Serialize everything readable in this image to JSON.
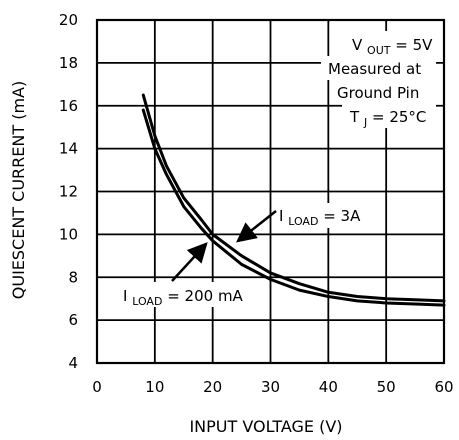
{
  "chart_data": {
    "type": "line",
    "xlabel": "INPUT VOLTAGE (V)",
    "ylabel": "QUIESCENT CURRENT (mA)",
    "xlim": [
      0,
      60
    ],
    "ylim": [
      4,
      20
    ],
    "x_ticks": [
      "0",
      "10",
      "20",
      "30",
      "40",
      "50",
      "60"
    ],
    "y_ticks": [
      "4",
      "6",
      "8",
      "10",
      "12",
      "14",
      "16",
      "18",
      "20"
    ],
    "grid": true,
    "series": [
      {
        "name": "I_LOAD = 3A",
        "label_main": "I",
        "label_sub": "LOAD",
        "label_rest": " = 3A",
        "x": [
          8,
          10,
          12,
          15,
          18,
          20,
          25,
          30,
          35,
          40,
          45,
          50,
          55,
          60
        ],
        "y": [
          16.5,
          14.6,
          13.2,
          11.7,
          10.7,
          10.0,
          9.0,
          8.2,
          7.7,
          7.3,
          7.1,
          7.0,
          6.95,
          6.9
        ]
      },
      {
        "name": "I_LOAD = 200 mA",
        "label_main": "I",
        "label_sub": "LOAD",
        "label_rest": " = 200 mA",
        "x": [
          8,
          10,
          12,
          15,
          18,
          20,
          25,
          30,
          35,
          40,
          45,
          50,
          55,
          60
        ],
        "y": [
          15.8,
          14.0,
          12.8,
          11.3,
          10.3,
          9.7,
          8.6,
          7.9,
          7.4,
          7.1,
          6.9,
          6.8,
          6.75,
          6.7
        ]
      }
    ],
    "annotations": {
      "vout_main": "V",
      "vout_sub": "OUT",
      "vout_rest": " = 5V",
      "measured_line1": "Measured at",
      "measured_line2": "Ground Pin",
      "tj_main": "T",
      "tj_sub": "J",
      "tj_rest": " = 25°C"
    }
  }
}
